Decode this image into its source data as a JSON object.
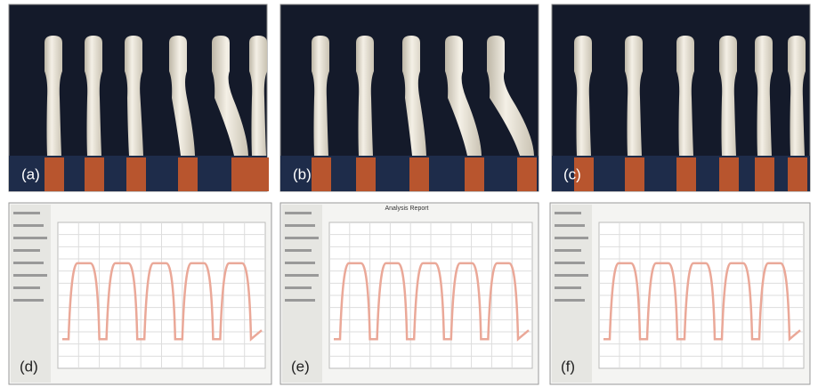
{
  "panels": [
    {
      "label": "(a)"
    },
    {
      "label": "(b)"
    },
    {
      "label": "(c)"
    },
    {
      "label": "(d)"
    },
    {
      "label": "(e)",
      "title": "Analysis Report"
    },
    {
      "label": "(f)"
    }
  ]
}
